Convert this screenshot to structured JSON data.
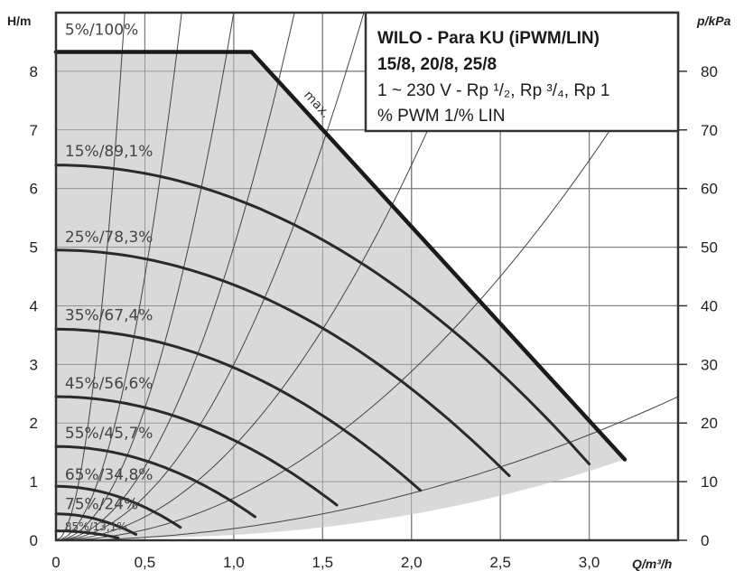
{
  "chart_data": {
    "type": "line",
    "title_lines": [
      "WILO - Para KU (iPWM/LIN)",
      "15/8, 20/8, 25/8",
      "1 ~ 230 V - Rp ¹/₂, Rp ³/₄, Rp 1",
      "% PWM 1/% LIN"
    ],
    "xlabel": "Q/m³/h",
    "ylabel": "H/m",
    "y2label": "p/kPa",
    "xlim": [
      0,
      3.5
    ],
    "ylim": [
      0,
      9
    ],
    "y2lim": [
      0,
      90
    ],
    "x_ticks": [
      {
        "value": 0,
        "label": "0"
      },
      {
        "value": 0.5,
        "label": "0,5"
      },
      {
        "value": 1.0,
        "label": "1,0"
      },
      {
        "value": 1.5,
        "label": "1,5"
      },
      {
        "value": 2.0,
        "label": "2,0"
      },
      {
        "value": 2.5,
        "label": "2,5"
      },
      {
        "value": 3.0,
        "label": "3,0"
      }
    ],
    "y_ticks": [
      {
        "value": 0,
        "label": "0"
      },
      {
        "value": 1,
        "label": "1"
      },
      {
        "value": 2,
        "label": "2"
      },
      {
        "value": 3,
        "label": "3"
      },
      {
        "value": 4,
        "label": "4"
      },
      {
        "value": 5,
        "label": "5"
      },
      {
        "value": 6,
        "label": "6"
      },
      {
        "value": 7,
        "label": "7"
      },
      {
        "value": 8,
        "label": "8"
      }
    ],
    "y2_ticks": [
      {
        "value": 0,
        "label": "0"
      },
      {
        "value": 10,
        "label": "10"
      },
      {
        "value": 20,
        "label": "20"
      },
      {
        "value": 30,
        "label": "30"
      },
      {
        "value": 40,
        "label": "40"
      },
      {
        "value": 50,
        "label": "50"
      },
      {
        "value": 60,
        "label": "60"
      },
      {
        "value": 70,
        "label": "70"
      },
      {
        "value": 80,
        "label": "80"
      }
    ],
    "grid": true,
    "max_curve": {
      "label": "max.",
      "points": [
        [
          0,
          8.33
        ],
        [
          1.1,
          8.33
        ],
        [
          3.2,
          1.38
        ]
      ]
    },
    "series": [
      {
        "name": "5%/100%",
        "h0": 8.33,
        "q_end": 1.1,
        "h_end": 8.33,
        "label_value": [
          0.02,
          8.65
        ]
      },
      {
        "name": "15%/89,1%",
        "h0": 6.4,
        "q_end": 3.0,
        "h_end": 1.3,
        "label_value": [
          0.02,
          6.58
        ]
      },
      {
        "name": "25%/78,3%",
        "h0": 4.95,
        "q_end": 2.55,
        "h_end": 1.1,
        "label_value": [
          0.02,
          5.12
        ]
      },
      {
        "name": "35%/67,4%",
        "h0": 3.6,
        "q_end": 2.05,
        "h_end": 0.85,
        "label_value": [
          0.02,
          3.78
        ]
      },
      {
        "name": "45%/56,6%",
        "h0": 2.45,
        "q_end": 1.58,
        "h_end": 0.6,
        "label_value": [
          0.02,
          2.62
        ]
      },
      {
        "name": "55%/45,7%",
        "h0": 1.6,
        "q_end": 1.12,
        "h_end": 0.4,
        "label_value": [
          0.02,
          1.77
        ]
      },
      {
        "name": "65%/34,8%",
        "h0": 0.92,
        "q_end": 0.7,
        "h_end": 0.22,
        "label_value": [
          0.02,
          1.06
        ]
      },
      {
        "name": "75%/24%",
        "h0": 0.45,
        "q_end": 0.45,
        "h_end": 0.1,
        "label_value": [
          0.02,
          0.56
        ]
      },
      {
        "name": "85%/13,1%",
        "h0": 0.16,
        "q_end": 0.35,
        "h_end": 0.04,
        "label_value": [
          0.02,
          0.2
        ]
      }
    ],
    "system_curves_k": [
      60,
      18,
      9,
      5,
      3,
      1.6,
      0.72,
      0.2
    ]
  }
}
